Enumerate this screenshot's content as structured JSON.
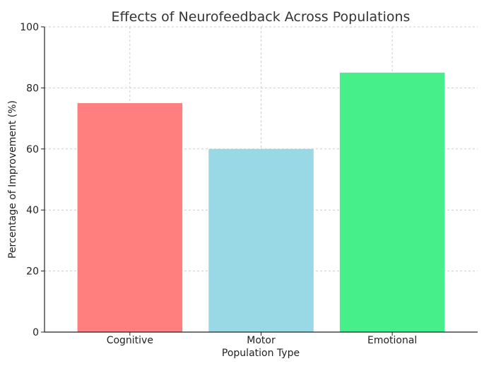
{
  "chart_data": {
    "type": "bar",
    "title": "Effects of Neurofeedback Across Populations",
    "xlabel": "Population Type",
    "ylabel": "Percentage of Improvement (%)",
    "categories": [
      "Cognitive",
      "Motor",
      "Emotional"
    ],
    "values": [
      75,
      60,
      85
    ],
    "colors": [
      "#ff7f7f",
      "#99d9e6",
      "#46ef8a"
    ],
    "ylim": [
      0,
      100
    ],
    "yticks": [
      0,
      20,
      40,
      60,
      80,
      100
    ],
    "grid": true,
    "legend": "none"
  }
}
